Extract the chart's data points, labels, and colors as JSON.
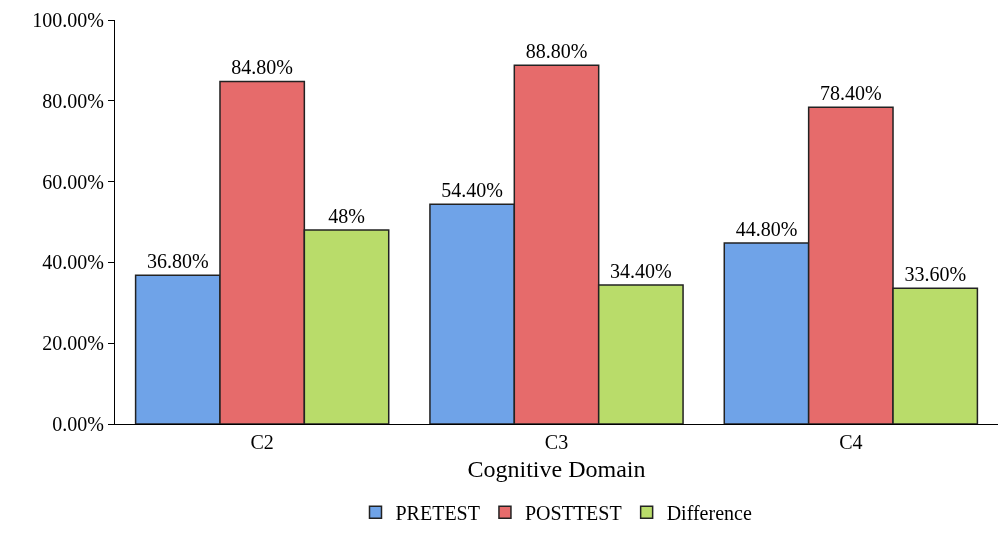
{
  "chart_data": {
    "type": "bar",
    "xlabel": "Cognitive Domain",
    "categories": [
      "C2",
      "C3",
      "C4"
    ],
    "series": [
      {
        "name": "PRETEST",
        "color": "#6fa3e8",
        "values": [
          36.8,
          54.4,
          44.8
        ],
        "value_labels": [
          "36.80%",
          "54.40%",
          "44.80%"
        ]
      },
      {
        "name": "POSTTEST",
        "color": "#e66b6b",
        "values": [
          84.8,
          88.8,
          78.4
        ],
        "value_labels": [
          "84.80%",
          "88.80%",
          "78.40%"
        ]
      },
      {
        "name": "Difference",
        "color": "#b9dc6a",
        "values": [
          48,
          34.4,
          33.6
        ],
        "value_labels": [
          "48%",
          "34.40%",
          "33.60%"
        ]
      }
    ],
    "ylim": [
      0,
      100
    ],
    "yticks": [
      {
        "value": 0,
        "label": "0.00%"
      },
      {
        "value": 20,
        "label": "20.00%"
      },
      {
        "value": 40,
        "label": "40.00%"
      },
      {
        "value": 60,
        "label": "60.00%"
      },
      {
        "value": 80,
        "label": "80.00%"
      },
      {
        "value": 100,
        "label": "100.00%"
      }
    ],
    "legend": "bottom"
  }
}
